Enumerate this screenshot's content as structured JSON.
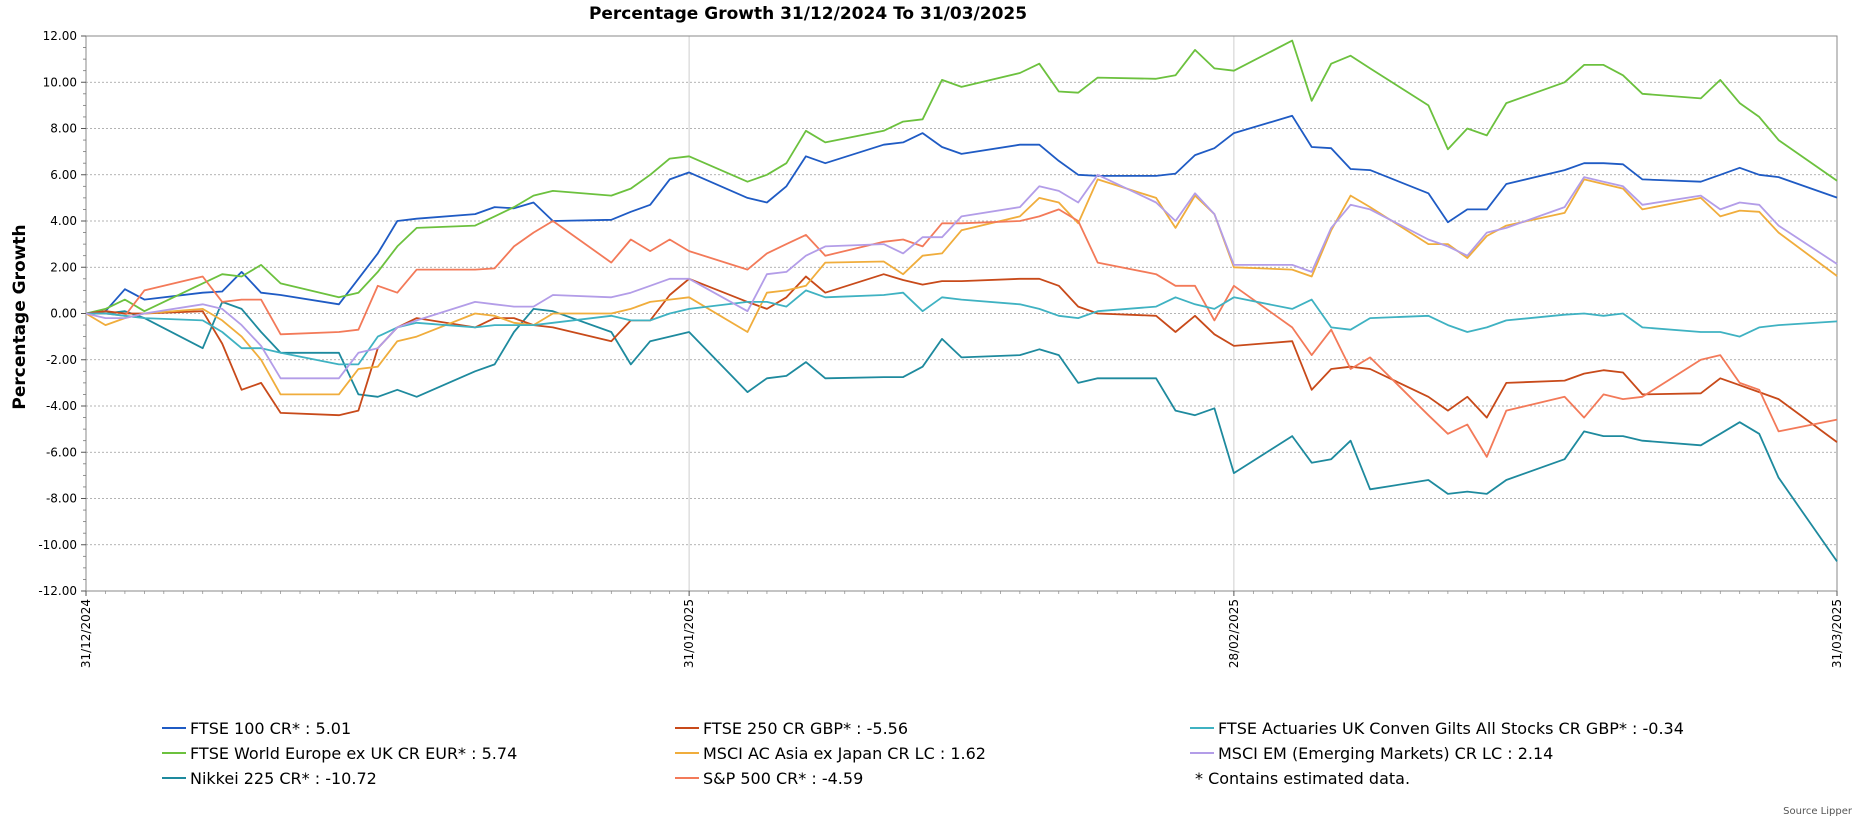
{
  "chart_data": {
    "type": "line",
    "title": "Percentage Growth 31/12/2024 To 31/03/2025",
    "ylabel": "Percentage Growth",
    "ylim": [
      -12,
      12
    ],
    "y_ticks": [
      12,
      10,
      8,
      6,
      4,
      2,
      0,
      -2,
      -4,
      -6,
      -8,
      -10,
      -12
    ],
    "y_tick_labels": [
      "12.00",
      "10.00",
      "8.00",
      "6.00",
      "4.00",
      "2.00",
      "0.00",
      "-2.00",
      "-4.00",
      "-6.00",
      "-8.00",
      "-10.00",
      "-12.00"
    ],
    "x_tick_labels": [
      "31/12/2024",
      "31/01/2025",
      "28/02/2025",
      "31/03/2025"
    ],
    "x_tick_days": [
      0,
      31,
      59,
      90
    ],
    "grid": true,
    "note": "*  Contains estimated data.",
    "source": "Source Lipper",
    "x": [
      0,
      1,
      2,
      3,
      6,
      7,
      8,
      9,
      10,
      13,
      14,
      15,
      16,
      17,
      20,
      21,
      22,
      23,
      24,
      27,
      28,
      29,
      30,
      31,
      34,
      35,
      36,
      37,
      38,
      41,
      42,
      43,
      44,
      45,
      48,
      49,
      50,
      51,
      52,
      55,
      56,
      57,
      58,
      59,
      62,
      63,
      64,
      65,
      66,
      69,
      70,
      71,
      72,
      73,
      76,
      77,
      78,
      79,
      80,
      83,
      84,
      85,
      86,
      87,
      90
    ],
    "series": [
      {
        "name": "FTSE 100 CR*",
        "label": "FTSE 100 CR* : 5.01",
        "color": "#1f5bc4",
        "values": [
          0,
          0.1,
          1.05,
          0.6,
          0.9,
          0.95,
          1.8,
          0.9,
          0.8,
          0.4,
          1.5,
          2.6,
          4.0,
          4.1,
          4.3,
          4.6,
          4.55,
          4.8,
          4.0,
          4.05,
          4.4,
          4.7,
          5.8,
          6.1,
          5.0,
          4.8,
          5.5,
          6.8,
          6.5,
          7.3,
          7.4,
          7.8,
          7.2,
          6.9,
          7.3,
          7.3,
          6.6,
          6.0,
          5.95,
          5.95,
          6.05,
          6.85,
          7.15,
          7.8,
          8.55,
          7.2,
          7.15,
          6.25,
          6.2,
          5.2,
          3.95,
          4.5,
          4.5,
          5.6,
          6.2,
          6.5,
          6.5,
          6.45,
          5.8,
          5.7,
          6.0,
          6.3,
          6.0,
          5.9,
          5.01
        ]
      },
      {
        "name": "FTSE World Europe ex UK CR EUR*",
        "label": "FTSE World Europe ex UK CR EUR* : 5.74",
        "color": "#6cc13e",
        "values": [
          0,
          0.2,
          0.6,
          0.1,
          1.3,
          1.7,
          1.6,
          2.1,
          1.3,
          0.7,
          0.9,
          1.8,
          2.9,
          3.7,
          3.8,
          4.2,
          4.6,
          5.1,
          5.3,
          5.1,
          5.4,
          6.0,
          6.7,
          6.8,
          5.7,
          6.0,
          6.5,
          7.9,
          7.4,
          7.9,
          8.3,
          8.4,
          10.1,
          9.8,
          10.4,
          10.8,
          9.6,
          9.55,
          10.2,
          10.15,
          10.3,
          11.4,
          10.6,
          10.5,
          11.8,
          9.2,
          10.8,
          11.15,
          10.6,
          9.0,
          7.1,
          8.0,
          7.7,
          9.1,
          10.0,
          10.75,
          10.75,
          10.3,
          9.5,
          9.3,
          10.1,
          9.1,
          8.5,
          7.5,
          5.74
        ]
      },
      {
        "name": "Nikkei 225 CR*",
        "label": "Nikkei 225 CR* : -10.72",
        "color": "#1e8a9e",
        "values": [
          0,
          0,
          0.1,
          -0.2,
          -1.5,
          0.5,
          0.2,
          -0.8,
          -1.7,
          -1.7,
          -3.5,
          -3.6,
          -3.3,
          -3.6,
          -2.5,
          -2.2,
          -0.8,
          0.2,
          0.1,
          -0.8,
          -2.2,
          -1.2,
          -1.0,
          -0.8,
          -3.4,
          -2.8,
          -2.7,
          -2.1,
          -2.8,
          -2.75,
          -2.75,
          -2.3,
          -1.1,
          -1.9,
          -1.8,
          -1.55,
          -1.8,
          -3.0,
          -2.8,
          -2.8,
          -4.2,
          -4.4,
          -4.1,
          -6.9,
          -5.3,
          -6.45,
          -6.3,
          -5.5,
          -7.6,
          -7.2,
          -7.8,
          -7.7,
          -7.8,
          -7.2,
          -6.3,
          -5.1,
          -5.3,
          -5.3,
          -5.5,
          -5.7,
          -5.2,
          -4.7,
          -5.2,
          -7.1,
          -10.72
        ]
      },
      {
        "name": "FTSE 250 CR GBP*",
        "label": "FTSE 250 CR GBP* : -5.56",
        "color": "#c84a1a",
        "values": [
          0,
          0.1,
          0,
          0,
          0.1,
          -1.3,
          -3.3,
          -3.0,
          -4.3,
          -4.4,
          -4.2,
          -1.5,
          -0.6,
          -0.2,
          -0.6,
          -0.2,
          -0.2,
          -0.5,
          -0.6,
          -1.2,
          -0.3,
          -0.3,
          0.8,
          1.5,
          0.5,
          0.2,
          0.7,
          1.6,
          0.9,
          1.7,
          1.45,
          1.25,
          1.4,
          1.4,
          1.5,
          1.5,
          1.2,
          0.3,
          0,
          -0.1,
          -0.8,
          -0.1,
          -0.9,
          -1.4,
          -1.2,
          -3.3,
          -2.4,
          -2.3,
          -2.4,
          -3.6,
          -4.2,
          -3.6,
          -4.5,
          -3.0,
          -2.9,
          -2.6,
          -2.45,
          -2.55,
          -3.5,
          -3.45,
          -2.8,
          -3.1,
          -3.4,
          -3.7,
          -5.56
        ]
      },
      {
        "name": "MSCI AC Asia ex Japan CR LC",
        "label": "MSCI AC Asia ex Japan CR LC : 1.62",
        "color": "#f0ad3c",
        "values": [
          0,
          -0.5,
          -0.2,
          0,
          0.2,
          -0.3,
          -1.0,
          -2.0,
          -3.5,
          -3.5,
          -2.4,
          -2.3,
          -1.2,
          -1.0,
          0,
          -0.1,
          -0.4,
          -0.5,
          0,
          0,
          0.2,
          0.5,
          0.6,
          0.7,
          -0.8,
          0.9,
          1.0,
          1.2,
          2.2,
          2.25,
          1.7,
          2.5,
          2.6,
          3.6,
          4.2,
          5.0,
          4.8,
          3.9,
          5.8,
          5.0,
          3.7,
          5.1,
          4.3,
          2.0,
          1.9,
          1.6,
          3.6,
          5.1,
          4.6,
          3.0,
          3.0,
          2.4,
          3.35,
          3.8,
          4.35,
          5.8,
          5.6,
          5.4,
          4.5,
          5.0,
          4.2,
          4.45,
          4.4,
          3.5,
          1.62
        ]
      },
      {
        "name": "S&P 500 CR*",
        "label": "S&P 500 CR* : -4.59",
        "color": "#f37a59",
        "values": [
          0,
          0,
          -0.1,
          1.0,
          1.6,
          0.5,
          0.6,
          0.6,
          -0.9,
          -0.8,
          -0.7,
          1.2,
          0.9,
          1.9,
          1.9,
          1.95,
          2.9,
          3.5,
          4.0,
          2.2,
          3.2,
          2.7,
          3.2,
          2.7,
          1.9,
          2.6,
          3.0,
          3.4,
          2.5,
          3.1,
          3.2,
          2.9,
          3.9,
          3.9,
          4.0,
          4.2,
          4.5,
          4.0,
          2.2,
          1.7,
          1.2,
          1.2,
          -0.3,
          1.2,
          -0.6,
          -1.8,
          -0.7,
          -2.4,
          -1.9,
          -4.4,
          -5.2,
          -4.8,
          -6.2,
          -4.2,
          -3.6,
          -4.5,
          -3.5,
          -3.7,
          -3.6,
          -2.0,
          -1.8,
          -3.0,
          -3.3,
          -5.1,
          -4.59
        ]
      },
      {
        "name": "FTSE Actuaries UK Conven Gilts All Stocks CR GBP*",
        "label": "FTSE Actuaries UK Conven Gilts All Stocks CR GBP* : -0.34",
        "color": "#3fb2c2",
        "values": [
          0,
          0,
          -0.1,
          -0.2,
          -0.3,
          -0.8,
          -1.5,
          -1.5,
          -1.7,
          -2.2,
          -2.2,
          -1.0,
          -0.6,
          -0.4,
          -0.6,
          -0.5,
          -0.5,
          -0.5,
          -0.4,
          -0.1,
          -0.3,
          -0.3,
          0,
          0.2,
          0.5,
          0.5,
          0.3,
          1.0,
          0.7,
          0.8,
          0.9,
          0.1,
          0.7,
          0.6,
          0.4,
          0.2,
          -0.1,
          -0.2,
          0.1,
          0.3,
          0.7,
          0.4,
          0.2,
          0.7,
          0.2,
          0.6,
          -0.6,
          -0.7,
          -0.2,
          -0.1,
          -0.5,
          -0.8,
          -0.6,
          -0.3,
          -0.05,
          0,
          -0.1,
          0,
          -0.6,
          -0.8,
          -0.8,
          -1.0,
          -0.6,
          -0.5,
          -0.34
        ]
      },
      {
        "name": "MSCI EM (Emerging Markets) CR LC",
        "label": "MSCI EM (Emerging Markets) CR LC : 2.14",
        "color": "#b39de8",
        "values": [
          0,
          -0.2,
          -0.2,
          0,
          0.4,
          0.2,
          -0.5,
          -1.4,
          -2.8,
          -2.8,
          -1.7,
          -1.5,
          -0.6,
          -0.3,
          0.5,
          0.4,
          0.3,
          0.3,
          0.8,
          0.7,
          0.9,
          1.2,
          1.5,
          1.5,
          0.1,
          1.7,
          1.8,
          2.5,
          2.9,
          3.0,
          2.6,
          3.3,
          3.3,
          4.2,
          4.6,
          5.5,
          5.3,
          4.8,
          6.0,
          4.8,
          4.0,
          5.2,
          4.3,
          2.1,
          2.1,
          1.8,
          3.7,
          4.7,
          4.5,
          3.2,
          2.9,
          2.5,
          3.5,
          3.7,
          4.6,
          5.9,
          5.7,
          5.5,
          4.7,
          5.1,
          4.5,
          4.8,
          4.7,
          3.8,
          2.14
        ]
      }
    ]
  }
}
